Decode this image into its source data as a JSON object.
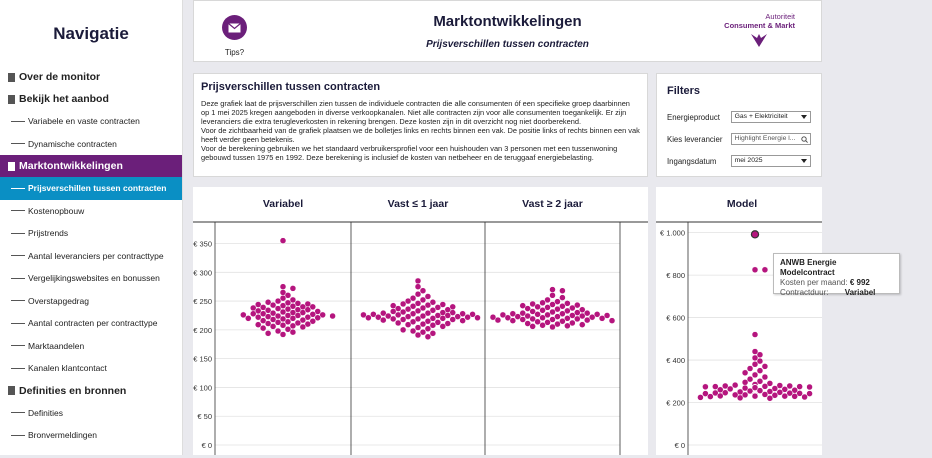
{
  "sidebar": {
    "title": "Navigatie",
    "items": [
      {
        "type": "section",
        "label": "Over de monitor",
        "active": false
      },
      {
        "type": "section",
        "label": "Bekijk het aanbod",
        "active": false
      },
      {
        "type": "sub",
        "label": "Variabele en vaste contracten",
        "active": false
      },
      {
        "type": "sub",
        "label": "Dynamische contracten",
        "active": false
      },
      {
        "type": "section",
        "label": "Marktontwikkelingen",
        "active": true
      },
      {
        "type": "sub",
        "label": "Prijsverschillen tussen contracten",
        "active": true
      },
      {
        "type": "sub",
        "label": "Kostenopbouw",
        "active": false
      },
      {
        "type": "sub",
        "label": "Prijstrends",
        "active": false
      },
      {
        "type": "sub",
        "label": "Aantal leveranciers per contracttype",
        "active": false
      },
      {
        "type": "sub",
        "label": "Vergelijkingswebsites en bonussen",
        "active": false
      },
      {
        "type": "sub",
        "label": "Overstapgedrag",
        "active": false
      },
      {
        "type": "sub",
        "label": "Aantal contracten per contracttype",
        "active": false
      },
      {
        "type": "sub",
        "label": "Marktaandelen",
        "active": false
      },
      {
        "type": "sub",
        "label": "Kanalen klantcontact",
        "active": false
      },
      {
        "type": "section",
        "label": "Definities en bronnen",
        "active": false
      },
      {
        "type": "sub",
        "label": "Definities",
        "active": false
      },
      {
        "type": "sub",
        "label": "Bronvermeldingen",
        "active": false
      }
    ]
  },
  "header": {
    "title": "Marktontwikkelingen",
    "subtitle": "Prijsverschillen tussen contracten",
    "tips_label": "Tips?",
    "tips_icon": "mail-icon",
    "logo_line1": "Autoriteit",
    "logo_line2": "Consument & Markt"
  },
  "description": {
    "title": "Prijsverschillen tussen contracten",
    "paragraphs": [
      "Deze grafiek laat de prijsverschillen zien tussen de individuele contracten die alle consumenten óf een specifieke groep daarbinnen op 1 mei 2025 kregen aangeboden in diverse verkoopkanalen. Niet alle contracten zijn voor alle consumenten toegankelijk. Er zijn leveranciers die extra terugleverkosten in rekening brengen. Deze kosten zijn in dit overzicht nog niet doorberekend.",
      "Voor de zichtbaarheid van de grafiek plaatsen we de bolletjes links en rechts binnen een vak. De positie links of rechts binnen een vak heeft verder geen betekenis.",
      "Voor de berekening gebruiken we het standaard verbruikersprofiel voor een huishouden van 3 personen met een tussenwoning gebouwd tussen 1975 en 1992. Deze berekening is inclusief de kosten van netbeheer en de teruggaaf energiebelasting."
    ]
  },
  "filters": {
    "title": "Filters",
    "energy_label": "Energieproduct",
    "energy_value": "Gas + Elektriciteit",
    "supplier_label": "Kies leverancier",
    "supplier_placeholder": "Highlight Energie l...",
    "date_label": "Ingangsdatum",
    "date_value": "mei 2025"
  },
  "tooltip": {
    "title": "ANWB Energie Modelcontract",
    "cost_label": "Kosten per maand:",
    "cost_value": "€ 992",
    "duration_label": "Contractduur:",
    "duration_value": "Variabel"
  },
  "colors": {
    "accent": "#6b1f7a",
    "active_sub": "#0a8fc4",
    "dot": "#b5157e"
  },
  "chart_data": [
    {
      "type": "scatter",
      "columns": [
        "Variabel",
        "Vast ≤ 1 jaar",
        "Vast ≥ 2 jaar"
      ],
      "ylim": [
        0,
        370
      ],
      "yticks": [
        0,
        50,
        100,
        150,
        200,
        250,
        300,
        350
      ],
      "ytick_labels": [
        "€ 0",
        "€ 50",
        "€ 100",
        "€ 150",
        "€ 200",
        "€ 250",
        "€ 300",
        "€ 350"
      ],
      "series": [
        {
          "column": "Variabel",
          "values": [
            355,
            275,
            272,
            265,
            260,
            255,
            252,
            250,
            248,
            247,
            246,
            245,
            244,
            243,
            242,
            241,
            240,
            240,
            239,
            238,
            237,
            236,
            235,
            235,
            234,
            233,
            232,
            231,
            230,
            230,
            229,
            228,
            228,
            227,
            226,
            226,
            225,
            225,
            224,
            224,
            223,
            222,
            222,
            221,
            220,
            220,
            219,
            218,
            217,
            216,
            215,
            214,
            213,
            212,
            211,
            210,
            209,
            208,
            207,
            206,
            205,
            203,
            201,
            198,
            196,
            194,
            192
          ]
        },
        {
          "column": "Vast ≤ 1 jaar",
          "values": [
            285,
            275,
            268,
            262,
            258,
            255,
            252,
            250,
            248,
            246,
            245,
            244,
            243,
            242,
            241,
            240,
            239,
            238,
            237,
            236,
            235,
            234,
            233,
            232,
            231,
            230,
            230,
            229,
            229,
            228,
            228,
            227,
            227,
            226,
            226,
            225,
            225,
            224,
            224,
            223,
            223,
            222,
            222,
            221,
            221,
            220,
            220,
            219,
            219,
            218,
            218,
            217,
            216,
            215,
            214,
            213,
            212,
            211,
            210,
            209,
            208,
            206,
            204,
            202,
            200,
            198,
            196,
            194,
            191,
            188
          ]
        },
        {
          "column": "Vast ≥ 2 jaar",
          "values": [
            270,
            268,
            260,
            256,
            252,
            249,
            247,
            246,
            245,
            244,
            243,
            242,
            241,
            240,
            239,
            238,
            237,
            236,
            235,
            234,
            233,
            232,
            231,
            230,
            229,
            229,
            228,
            228,
            227,
            227,
            226,
            226,
            225,
            225,
            224,
            224,
            223,
            223,
            222,
            222,
            221,
            221,
            220,
            220,
            219,
            219,
            218,
            218,
            217,
            217,
            216,
            216,
            215,
            214,
            213,
            212,
            211,
            210,
            209,
            208,
            207,
            206,
            205
          ]
        }
      ]
    },
    {
      "type": "scatter",
      "columns": [
        "Model"
      ],
      "ylim": [
        0,
        1050
      ],
      "yticks": [
        0,
        200,
        400,
        600,
        800,
        1000
      ],
      "ytick_labels": [
        "€ 0",
        "€ 200",
        "€ 400",
        "€ 600",
        "€ 800",
        "€ 1.000"
      ],
      "series": [
        {
          "column": "Model",
          "values": [
            992,
            825,
            825,
            520,
            440,
            425,
            410,
            395,
            380,
            370,
            360,
            350,
            340,
            330,
            320,
            310,
            300,
            295,
            290,
            285,
            282,
            280,
            278,
            278,
            276,
            275,
            275,
            274,
            273,
            272,
            271,
            270,
            268,
            266,
            264,
            262,
            260,
            258,
            256,
            254,
            252,
            250,
            248,
            246,
            245,
            244,
            243,
            242,
            242,
            241,
            240,
            240,
            239,
            238,
            238,
            237,
            236,
            236,
            235,
            235,
            234,
            234,
            233,
            233,
            232,
            232,
            231,
            231,
            230,
            230,
            229,
            228,
            226,
            224,
            222,
            220
          ],
          "highlight": 992
        }
      ]
    }
  ]
}
